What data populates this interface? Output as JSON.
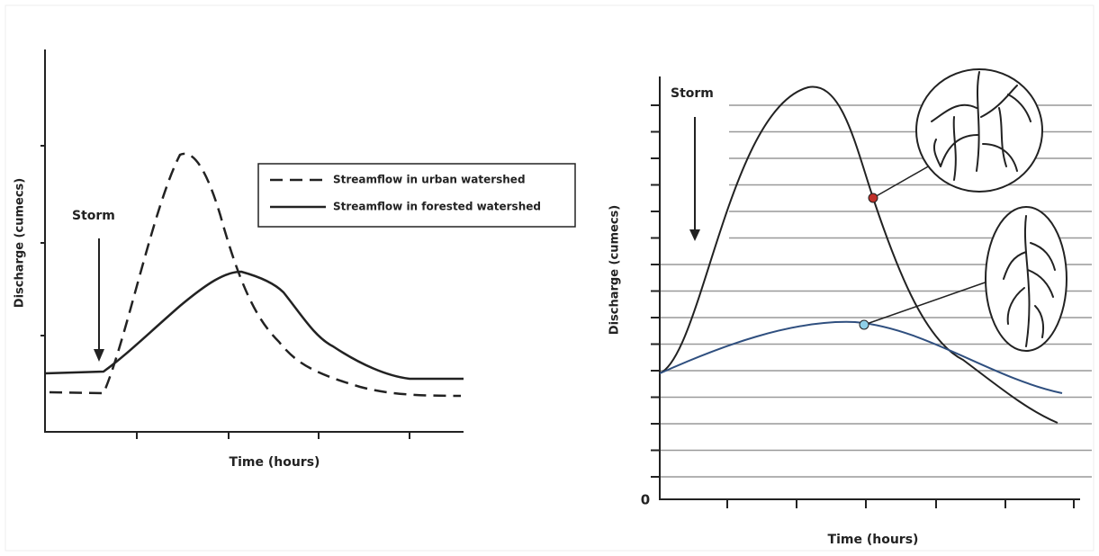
{
  "left_panel": {
    "storm_label": "Storm",
    "y_axis_label": "Discharge (cumecs)",
    "x_axis_label": "Time (hours)",
    "legend": [
      "Streamflow in urban watershed",
      "Streamflow in forested watershed"
    ]
  },
  "right_panel": {
    "storm_label": "Storm",
    "y_axis_label": "Discharge (cumecs)",
    "x_axis_label": "Time (hours)",
    "origin_label": "0"
  }
}
